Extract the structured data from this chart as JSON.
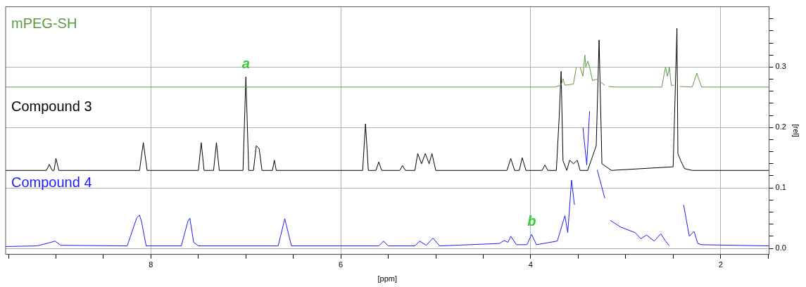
{
  "chart_data": {
    "type": "line",
    "xlabel": "[ppm]",
    "ylabel": "[rel]",
    "xlim": [
      9.53,
      1.49
    ],
    "xticks": [
      {
        "value": 9.5,
        "label": null
      },
      {
        "value": 9,
        "label": null
      },
      {
        "value": 8.5,
        "label": null
      },
      8,
      {
        "value": 7.5,
        "label": null
      },
      {
        "value": 7,
        "label": null
      },
      {
        "value": 6.5,
        "label": null
      },
      6,
      {
        "value": 5.5,
        "label": null
      },
      {
        "value": 5,
        "label": null
      },
      {
        "value": 4.5,
        "label": null
      },
      4,
      {
        "value": 3.5,
        "label": null
      },
      {
        "value": 3,
        "label": null
      },
      {
        "value": 2.5,
        "label": null
      },
      2,
      {
        "value": 1.5,
        "label": null
      }
    ],
    "ylim": [
      -0.01,
      0.4
    ],
    "yticks": [
      {
        "value": 0,
        "label": "0.0"
      },
      {
        "value": 0.02,
        "label": null
      },
      {
        "value": 0.04,
        "label": null
      },
      {
        "value": 0.06,
        "label": null
      },
      {
        "value": 0.08,
        "label": null
      },
      {
        "value": 0.1,
        "label": "0.1"
      },
      {
        "value": 0.12,
        "label": null
      },
      {
        "value": 0.14,
        "label": null
      },
      {
        "value": 0.16,
        "label": null
      },
      {
        "value": 0.18,
        "label": null
      },
      {
        "value": 0.2,
        "label": "0.2"
      },
      {
        "value": 0.22,
        "label": null
      },
      {
        "value": 0.24,
        "label": null
      },
      {
        "value": 0.26,
        "label": null
      },
      {
        "value": 0.28,
        "label": null
      },
      {
        "value": 0.3,
        "label": "0.3"
      },
      {
        "value": 0.32,
        "label": null
      },
      {
        "value": 0.34,
        "label": null
      },
      {
        "value": 0.36,
        "label": null
      },
      {
        "value": 0.38,
        "label": null
      }
    ],
    "grid": true,
    "annotations": [
      {
        "text": "a",
        "x": 7.0,
        "y": 0.284
      },
      {
        "text": "b",
        "x": 3.99,
        "y": 0.023
      }
    ],
    "series": [
      {
        "name": "mPEG-SH",
        "color": "#5b9a45",
        "x": [
          9.53,
          7.2,
          7.0,
          6.8,
          3.75,
          3.68,
          3.66,
          3.64,
          3.55,
          3.52,
          3.5,
          3.48,
          3.45,
          3.43,
          3.42,
          3.4,
          3.38,
          3.35,
          3.3,
          3.28,
          3.26,
          3.22,
          3.2,
          3.18,
          3.1,
          2.62,
          2.58,
          2.56,
          2.54,
          2.52,
          2.49,
          2.46,
          2.43,
          2.3,
          2.25,
          2.23,
          2.2,
          1.49
        ],
        "values": [
          0.267,
          0.267,
          0.267,
          0.267,
          0.267,
          0.27,
          0.281,
          0.27,
          0.272,
          0.3,
          null,
          0.3,
          0.285,
          0.32,
          0.3,
          0.31,
          0.3,
          0.278,
          0.28,
          null,
          0.275,
          0.27,
          null,
          0.268,
          0.267,
          0.267,
          0.3,
          0.285,
          0.3,
          0.27,
          0.27,
          null,
          0.268,
          0.267,
          0.29,
          0.28,
          0.267,
          0.267
        ]
      },
      {
        "name": "Compound 3",
        "color": "#000000",
        "x": [
          9.53,
          9.1,
          9.07,
          9.04,
          9.02,
          9.0,
          8.97,
          8.12,
          8.08,
          8.04,
          7.5,
          7.47,
          7.44,
          7.34,
          7.31,
          7.28,
          7.03,
          7.0,
          6.97,
          6.92,
          6.89,
          6.86,
          6.83,
          6.72,
          6.7,
          6.68,
          5.77,
          5.74,
          5.71,
          5.63,
          5.6,
          5.57,
          5.38,
          5.35,
          5.32,
          5.22,
          5.19,
          5.15,
          5.11,
          5.07,
          5.04,
          5.0,
          4.25,
          4.21,
          4.17,
          4.12,
          4.09,
          4.05,
          3.88,
          3.85,
          3.82,
          3.73,
          3.7,
          3.68,
          3.66,
          3.62,
          3.59,
          3.55,
          3.51,
          3.48,
          3.4,
          3.31,
          3.28,
          3.25,
          3.15,
          2.5,
          2.46,
          2.45,
          2.42,
          2.38,
          2.3,
          1.49
        ],
        "values": [
          0.129,
          0.129,
          0.139,
          0.129,
          0.129,
          0.149,
          0.129,
          0.129,
          0.175,
          0.129,
          0.129,
          0.175,
          0.129,
          0.129,
          0.175,
          0.129,
          0.129,
          0.284,
          0.129,
          0.129,
          0.17,
          0.165,
          0.129,
          0.129,
          0.146,
          0.129,
          0.129,
          0.206,
          0.129,
          0.129,
          0.143,
          0.129,
          0.129,
          0.137,
          0.129,
          0.129,
          0.157,
          0.14,
          0.157,
          0.14,
          0.157,
          0.129,
          0.129,
          0.149,
          0.129,
          0.129,
          0.15,
          0.129,
          0.129,
          0.138,
          0.129,
          0.129,
          0.218,
          0.293,
          0.145,
          0.129,
          0.146,
          0.14,
          0.146,
          0.129,
          0.129,
          0.17,
          0.345,
          0.14,
          0.129,
          0.135,
          0.364,
          0.157,
          0.145,
          0.132,
          0.129,
          0.129
        ]
      },
      {
        "name": "Compound 4",
        "color": "#1a1aff",
        "x": [
          9.53,
          9.2,
          9.05,
          9.01,
          8.95,
          8.25,
          8.15,
          8.12,
          8.1,
          8.05,
          7.68,
          7.61,
          7.59,
          7.55,
          7.5,
          6.66,
          6.59,
          6.52,
          5.6,
          5.55,
          5.5,
          5.22,
          5.17,
          5.1,
          5.03,
          4.96,
          4.33,
          4.28,
          4.24,
          4.21,
          4.15,
          4.04,
          3.99,
          3.94,
          3.72,
          3.64,
          3.61,
          3.57,
          3.54,
          3.5,
          3.45,
          3.41,
          3.38,
          3.36,
          3.3,
          3.22,
          3.2,
          3.16,
          3.05,
          2.9,
          2.84,
          2.78,
          2.7,
          2.63,
          2.58,
          2.54,
          2.46,
          2.39,
          2.33,
          2.28,
          2.24,
          2.2,
          1.49
        ],
        "values": [
          0.003,
          0.004,
          0.01,
          0.012,
          0.005,
          0.004,
          0.05,
          0.055,
          0.045,
          0.004,
          0.004,
          0.045,
          0.05,
          0.01,
          0.004,
          0.004,
          0.049,
          0.004,
          0.004,
          0.012,
          0.004,
          0.004,
          0.012,
          0.005,
          0.017,
          0.004,
          0.008,
          0.013,
          0.01,
          0.02,
          0.006,
          0.006,
          0.023,
          0.006,
          0.012,
          0.054,
          0.026,
          0.113,
          0.072,
          null,
          0.2,
          0.138,
          0.227,
          null,
          0.13,
          0.083,
          null,
          0.046,
          0.035,
          0.026,
          0.016,
          0.022,
          0.012,
          0.024,
          0.012,
          0.004,
          null,
          0.072,
          0.02,
          0.028,
          0.008,
          0.006,
          0.004
        ]
      }
    ]
  }
}
